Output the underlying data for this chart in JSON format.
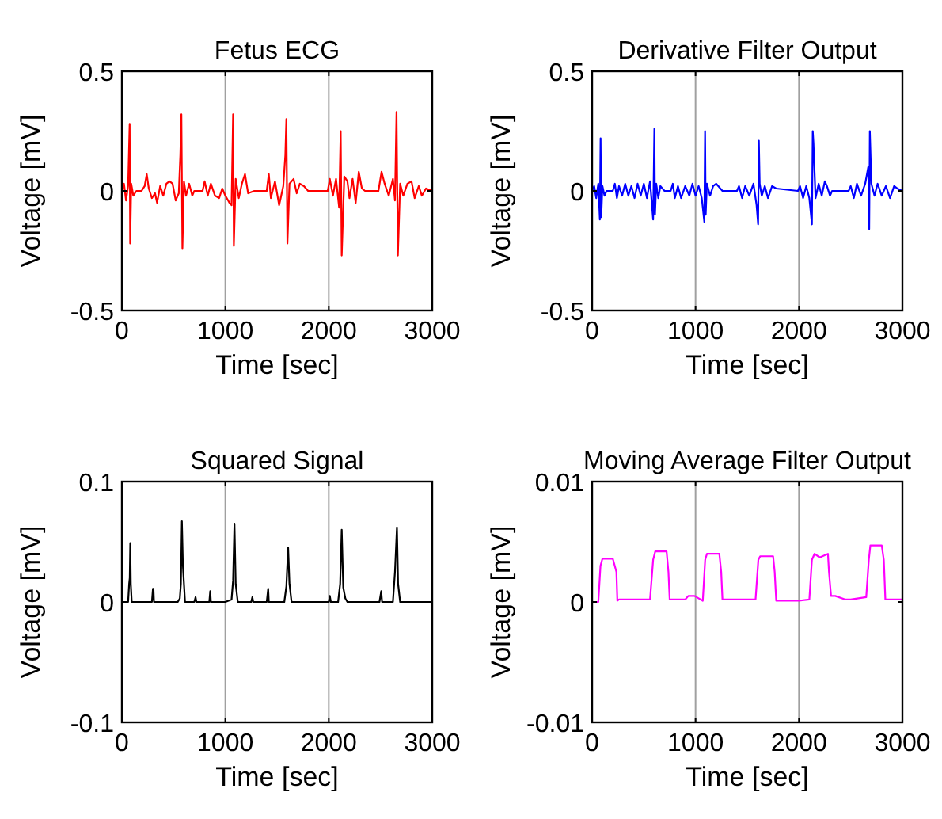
{
  "chart_data": [
    {
      "type": "line",
      "title": "Fetus ECG",
      "xlabel": "Time [sec]",
      "ylabel": "Voltage [mV]",
      "xlim": [
        0,
        3000
      ],
      "xticks": [
        0,
        1000,
        2000,
        3000
      ],
      "ylim": [
        -0.5,
        0.5
      ],
      "yticks": [
        -0.5,
        0,
        0.5
      ],
      "grid": "x",
      "series": [
        {
          "color": "#ff0000",
          "x": [
            0,
            20,
            40,
            60,
            75,
            80,
            90,
            110,
            140,
            190,
            220,
            240,
            260,
            290,
            320,
            340,
            370,
            400,
            430,
            460,
            490,
            520,
            550,
            565,
            575,
            585,
            600,
            620,
            650,
            680,
            700,
            780,
            800,
            830,
            860,
            900,
            940,
            970,
            1000,
            1040,
            1060,
            1075,
            1082,
            1100,
            1130,
            1160,
            1190,
            1220,
            1280,
            1400,
            1420,
            1440,
            1480,
            1520,
            1560,
            1580,
            1590,
            1600,
            1620,
            1660,
            1690,
            1720,
            1760,
            1800,
            1990,
            2010,
            2040,
            2070,
            2100,
            2115,
            2125,
            2150,
            2180,
            2200,
            2230,
            2260,
            2290,
            2320,
            2350,
            2480,
            2510,
            2540,
            2580,
            2620,
            2640,
            2655,
            2668,
            2690,
            2720,
            2760,
            2800,
            2830,
            2870,
            2900,
            2940,
            3000
          ],
          "values": [
            0,
            0.03,
            -0.04,
            0.02,
            0.28,
            -0.22,
            0.03,
            -0.02,
            0,
            0,
            0.02,
            0.07,
            0.01,
            -0.03,
            -0.01,
            -0.05,
            0.02,
            -0.02,
            0.03,
            0.04,
            0.03,
            -0.04,
            -0.01,
            0.15,
            0.32,
            -0.24,
            0.04,
            -0.02,
            0.03,
            -0.02,
            0,
            0,
            0.04,
            -0.02,
            0.03,
            -0.02,
            -0.03,
            0.01,
            -0.02,
            -0.05,
            -0.06,
            0.32,
            -0.23,
            0.05,
            -0.03,
            0.03,
            0.07,
            -0.01,
            0,
            0,
            0.07,
            -0.03,
            0.04,
            -0.06,
            0.02,
            0.15,
            0.3,
            -0.22,
            0.03,
            0.05,
            -0.01,
            0.03,
            0.02,
            0,
            0,
            0.05,
            -0.02,
            0.05,
            -0.07,
            0.25,
            -0.27,
            0.06,
            0.04,
            -0.03,
            0.05,
            -0.05,
            0.08,
            0.01,
            0,
            0,
            0.08,
            0.03,
            -0.02,
            0.05,
            -0.04,
            0.33,
            -0.27,
            0.03,
            -0.02,
            0.03,
            0.04,
            -0.03,
            0.02,
            -0.02,
            0.01,
            0
          ]
        }
      ]
    },
    {
      "type": "line",
      "title": "Derivative Filter Output",
      "xlabel": "Time [sec]",
      "ylabel": "Voltage [mV]",
      "xlim": [
        0,
        3000
      ],
      "xticks": [
        0,
        1000,
        2000,
        3000
      ],
      "ylim": [
        -0.5,
        0.5
      ],
      "yticks": [
        -0.5,
        0,
        0.5
      ],
      "grid": "x",
      "series": [
        {
          "color": "#0000ff",
          "x": [
            0,
            20,
            40,
            60,
            75,
            82,
            88,
            100,
            120,
            140,
            200,
            220,
            240,
            260,
            290,
            320,
            350,
            380,
            410,
            440,
            470,
            500,
            530,
            560,
            590,
            602,
            608,
            620,
            640,
            660,
            700,
            760,
            780,
            800,
            830,
            860,
            900,
            940,
            970,
            1000,
            1030,
            1060,
            1085,
            1092,
            1098,
            1110,
            1140,
            1170,
            1200,
            1260,
            1400,
            1420,
            1450,
            1480,
            1520,
            1560,
            1590,
            1605,
            1612,
            1620,
            1640,
            1670,
            1700,
            1740,
            1780,
            1990,
            2010,
            2040,
            2070,
            2100,
            2125,
            2133,
            2140,
            2160,
            2190,
            2220,
            2250,
            2270,
            2300,
            2320,
            2480,
            2500,
            2530,
            2560,
            2600,
            2640,
            2670,
            2679,
            2685,
            2700,
            2730,
            2760,
            2800,
            2840,
            2880,
            2920,
            2950,
            3000
          ],
          "values": [
            0,
            0.02,
            -0.03,
            0.03,
            -0.12,
            0.22,
            -0.11,
            0.02,
            -0.02,
            0,
            0,
            0.03,
            -0.03,
            0.02,
            -0.02,
            0.03,
            -0.02,
            0.02,
            -0.03,
            0.03,
            -0.02,
            0.03,
            -0.03,
            0.04,
            -0.12,
            0.26,
            -0.1,
            0.03,
            -0.03,
            0.02,
            0,
            0,
            0.03,
            -0.03,
            0.02,
            -0.03,
            0.02,
            -0.02,
            0.03,
            -0.02,
            0.02,
            -0.03,
            -0.13,
            0.25,
            -0.1,
            0.03,
            -0.02,
            0.02,
            0.03,
            0,
            0,
            0.02,
            -0.03,
            0.02,
            -0.02,
            0.03,
            -0.06,
            -0.14,
            0.21,
            0.03,
            -0.02,
            0.02,
            -0.03,
            0.02,
            0.01,
            0,
            0.02,
            -0.03,
            0.02,
            -0.03,
            -0.14,
            0.25,
            0.2,
            -0.03,
            0.03,
            -0.02,
            0.04,
            0.02,
            -0.02,
            0,
            0,
            0.02,
            -0.03,
            0.03,
            -0.02,
            0.03,
            0.1,
            -0.16,
            0.25,
            0.03,
            -0.02,
            0.03,
            -0.02,
            0.02,
            -0.03,
            0.02,
            0.01,
            0
          ]
        }
      ]
    },
    {
      "type": "line",
      "title": "Squared Signal",
      "xlabel": "Time [sec]",
      "ylabel": "Voltage [mV]",
      "xlim": [
        0,
        3000
      ],
      "xticks": [
        0,
        1000,
        2000,
        3000
      ],
      "ylim": [
        -0.1,
        0.1
      ],
      "yticks": [
        -0.1,
        0,
        0.1
      ],
      "grid": "x",
      "series": [
        {
          "color": "#000000",
          "x": [
            0,
            60,
            70,
            76,
            81,
            86,
            95,
            290,
            300,
            305,
            310,
            540,
            560,
            570,
            580,
            590,
            610,
            700,
            712,
            720,
            845,
            854,
            860,
            1000,
            1060,
            1075,
            1088,
            1100,
            1120,
            1250,
            1261,
            1270,
            1400,
            1414,
            1420,
            1570,
            1590,
            1607,
            1620,
            1640,
            2000,
            2010,
            2020,
            2090,
            2110,
            2125,
            2140,
            2160,
            2180,
            2490,
            2507,
            2515,
            2620,
            2640,
            2659,
            2670,
            2690,
            3000
          ],
          "values": [
            0,
            0,
            0.015,
            0.02,
            0.049,
            0.015,
            0,
            0,
            0.011,
            0.011,
            0,
            0,
            0.003,
            0.015,
            0.067,
            0.03,
            0,
            0,
            0.004,
            0,
            0,
            0.009,
            0,
            0,
            0.002,
            0.018,
            0.065,
            0.015,
            0,
            0,
            0.004,
            0,
            0,
            0.011,
            0,
            0,
            0.013,
            0.045,
            0.015,
            0,
            0,
            0.005,
            0,
            0,
            0.015,
            0.06,
            0.012,
            0.003,
            0,
            0,
            0.009,
            0,
            0,
            0.025,
            0.062,
            0.015,
            0,
            0
          ]
        }
      ]
    },
    {
      "type": "line",
      "title": "Moving Average Filter Output",
      "xlabel": "Time [sec]",
      "ylabel": "Voltage [mV]",
      "xlim": [
        0,
        3000
      ],
      "xticks": [
        0,
        1000,
        2000,
        3000
      ],
      "ylim": [
        -0.01,
        0.01
      ],
      "yticks": [
        -0.01,
        0,
        0.01
      ],
      "grid": "x",
      "series": [
        {
          "color": "#ff00ff",
          "x": [
            0,
            60,
            81,
            100,
            200,
            235,
            244,
            260,
            400,
            560,
            590,
            610,
            720,
            738,
            750,
            900,
            930,
            990,
            1070,
            1093,
            1110,
            1230,
            1248,
            1260,
            1450,
            1580,
            1607,
            1625,
            1750,
            1765,
            1780,
            2000,
            2100,
            2125,
            2150,
            2200,
            2280,
            2290,
            2310,
            2350,
            2450,
            2500,
            2650,
            2675,
            2690,
            2800,
            2820,
            2835,
            3000
          ],
          "values": [
            0,
            0,
            0.003,
            0.0036,
            0.0036,
            0.0025,
            0.0001,
            0.0002,
            0.0002,
            0.0002,
            0.0035,
            0.0042,
            0.0042,
            0.0025,
            0.0002,
            0.0002,
            0.0005,
            0.0005,
            0.0001,
            0.0035,
            0.004,
            0.004,
            0.0025,
            0.0002,
            0.0002,
            0.0002,
            0.0035,
            0.0038,
            0.0038,
            0.0025,
            0.0001,
            0.0001,
            0.0002,
            0.0035,
            0.004,
            0.0037,
            0.004,
            0.0025,
            0.0005,
            0.0005,
            0.0002,
            0.0002,
            0.0004,
            0.0035,
            0.0047,
            0.0047,
            0.0035,
            0.0002,
            0.0002
          ]
        }
      ]
    }
  ]
}
